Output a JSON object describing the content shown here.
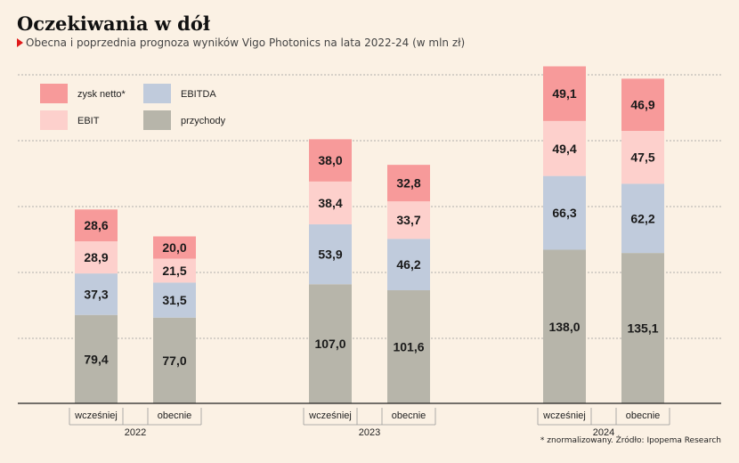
{
  "title": "Oczekiwania w dół",
  "subtitle": "Obecna i poprzednia prognoza wyników Vigo Photonics na lata 2022-24 (w mln zł)",
  "footnote": "* znormalizowany. Źródło: Ipopema Research",
  "colors": {
    "background": "#fbf1e4",
    "zysk_netto": "#f79a9a",
    "ebit": "#fdd0cc",
    "ebitda": "#c0cbdc",
    "przychody": "#b7b5aa",
    "accent": "#e01a1a"
  },
  "chart_data": {
    "type": "bar",
    "stacked": true,
    "groups": [
      "2022",
      "2023",
      "2024"
    ],
    "bar_labels": [
      "wcześniej",
      "obecnie"
    ],
    "categories": [
      "wcześniej 2022",
      "obecnie 2022",
      "wcześniej 2023",
      "obecnie 2023",
      "wcześniej 2024",
      "obecnie 2024"
    ],
    "series": [
      {
        "name": "przychody",
        "values": [
          79.4,
          77.0,
          107.0,
          101.6,
          138.0,
          135.1
        ],
        "color": "#b7b5aa"
      },
      {
        "name": "EBITDA",
        "values": [
          37.3,
          31.5,
          53.9,
          46.2,
          66.3,
          62.2
        ],
        "color": "#c0cbdc"
      },
      {
        "name": "EBIT",
        "values": [
          28.9,
          21.5,
          38.4,
          33.7,
          49.4,
          47.5
        ],
        "color": "#fdd0cc"
      },
      {
        "name": "zysk netto*",
        "values": [
          28.6,
          20.0,
          38.0,
          32.8,
          49.1,
          46.9
        ],
        "color": "#f79a9a"
      }
    ],
    "legend": {
      "placement": "top-left",
      "order": [
        "zysk netto*",
        "EBITDA",
        "EBIT",
        "przychody"
      ]
    },
    "ylim": [
      0,
      300
    ],
    "grid": true
  }
}
